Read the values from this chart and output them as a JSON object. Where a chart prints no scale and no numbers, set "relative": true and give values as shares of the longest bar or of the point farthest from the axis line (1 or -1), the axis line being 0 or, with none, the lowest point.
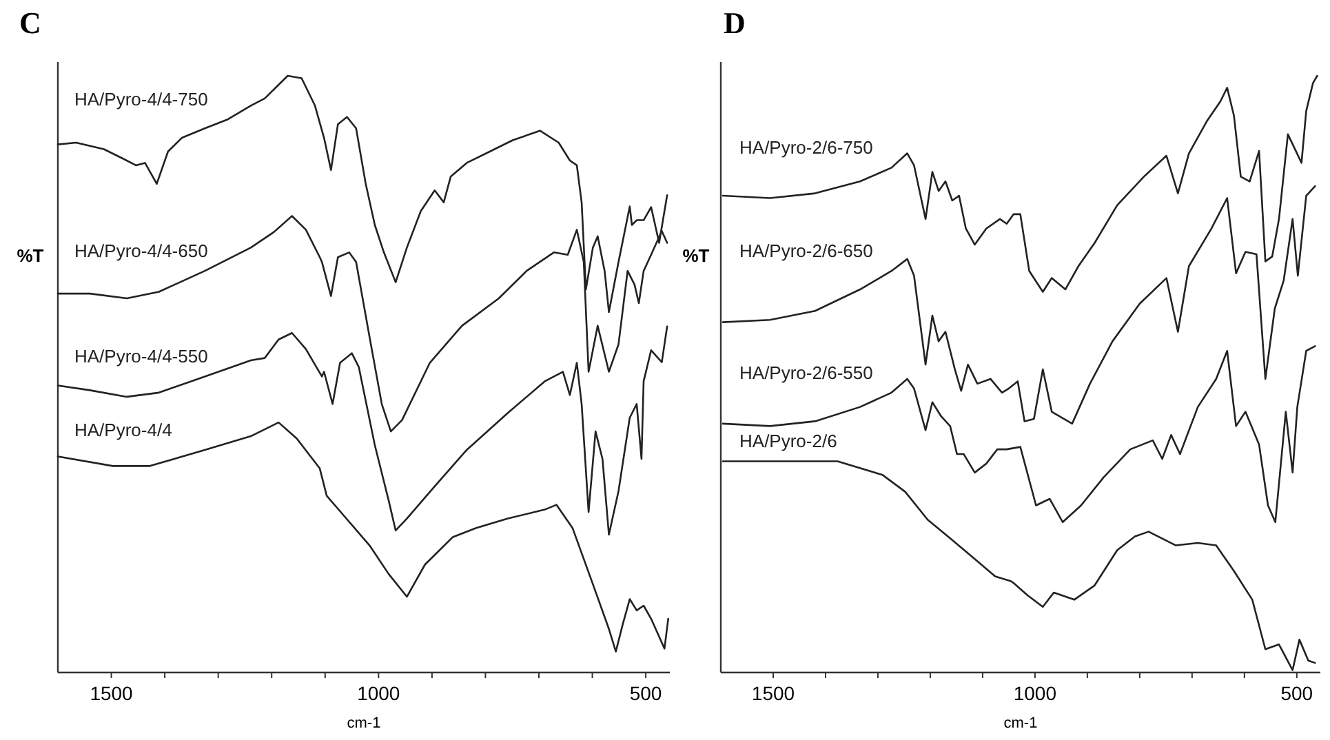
{
  "chart_data": [
    {
      "type": "line",
      "title": "C",
      "xlabel": "cm-1",
      "ylabel": "%T",
      "relative": true,
      "xlim": [
        1600,
        455
      ],
      "xticks": [
        {
          "value": 1500,
          "label": "1500"
        },
        {
          "value": 1400,
          "label": null
        },
        {
          "value": 1300,
          "label": null
        },
        {
          "value": 1200,
          "label": null
        },
        {
          "value": 1100,
          "label": null
        },
        {
          "value": 1000,
          "label": "1000"
        },
        {
          "value": 900,
          "label": null
        },
        {
          "value": 800,
          "label": null
        },
        {
          "value": 700,
          "label": null
        },
        {
          "value": 600,
          "label": null
        },
        {
          "value": 500,
          "label": "500"
        }
      ],
      "series": [
        {
          "name": "HA/Pyro-4/4-750",
          "color": "#222222",
          "x": [
            1600,
            1566,
            1514,
            1480,
            1454,
            1437,
            1415,
            1394,
            1368,
            1325,
            1282,
            1239,
            1213,
            1187,
            1170,
            1144,
            1119,
            1102,
            1089,
            1076,
            1059,
            1042,
            1024,
            1007,
            990,
            968,
            947,
            921,
            895,
            878,
            865,
            835,
            792,
            749,
            698,
            663,
            642,
            629,
            620,
            612,
            599,
            590,
            577,
            569,
            551,
            530,
            526,
            517,
            504,
            490,
            475,
            460
          ],
          "values": [
            0.885,
            0.888,
            0.877,
            0.862,
            0.85,
            0.854,
            0.819,
            0.873,
            0.896,
            0.912,
            0.927,
            0.95,
            0.962,
            0.985,
            1.0,
            0.996,
            0.95,
            0.896,
            0.842,
            0.919,
            0.931,
            0.912,
            0.819,
            0.75,
            0.704,
            0.654,
            0.712,
            0.773,
            0.808,
            0.788,
            0.831,
            0.854,
            0.873,
            0.892,
            0.908,
            0.888,
            0.858,
            0.85,
            0.788,
            0.642,
            0.712,
            0.731,
            0.673,
            0.604,
            0.688,
            0.781,
            0.75,
            0.758,
            0.758,
            0.78,
            0.72,
            0.8
          ]
        },
        {
          "name": "HA/Pyro-4/4-650",
          "color": "#222222",
          "x": [
            1600,
            1540,
            1471,
            1411,
            1325,
            1239,
            1196,
            1162,
            1136,
            1110,
            1106,
            1089,
            1076,
            1055,
            1042,
            1016,
            994,
            977,
            956,
            904,
            844,
            775,
            723,
            672,
            646,
            629,
            616,
            607,
            590,
            569,
            551,
            534,
            521,
            513,
            504,
            490,
            470,
            460
          ],
          "values": [
            0.635,
            0.635,
            0.627,
            0.638,
            0.673,
            0.712,
            0.738,
            0.765,
            0.742,
            0.696,
            0.688,
            0.631,
            0.696,
            0.704,
            0.688,
            0.558,
            0.45,
            0.404,
            0.423,
            0.519,
            0.581,
            0.627,
            0.673,
            0.704,
            0.7,
            0.742,
            0.688,
            0.504,
            0.581,
            0.504,
            0.55,
            0.673,
            0.65,
            0.619,
            0.673,
            0.7,
            0.74,
            0.72
          ]
        },
        {
          "name": "HA/Pyro-4/4-550",
          "color": "#222222",
          "x": [
            1600,
            1540,
            1471,
            1411,
            1325,
            1239,
            1213,
            1187,
            1162,
            1136,
            1106,
            1102,
            1086,
            1072,
            1050,
            1037,
            1007,
            981,
            968,
            947,
            895,
            835,
            758,
            689,
            655,
            642,
            629,
            620,
            607,
            594,
            581,
            569,
            551,
            530,
            517,
            508,
            504,
            490,
            470,
            460
          ],
          "values": [
            0.481,
            0.473,
            0.462,
            0.469,
            0.496,
            0.523,
            0.527,
            0.558,
            0.569,
            0.542,
            0.496,
            0.504,
            0.45,
            0.519,
            0.535,
            0.512,
            0.381,
            0.288,
            0.238,
            0.258,
            0.312,
            0.373,
            0.435,
            0.488,
            0.504,
            0.465,
            0.519,
            0.45,
            0.269,
            0.404,
            0.358,
            0.231,
            0.304,
            0.427,
            0.45,
            0.358,
            0.488,
            0.54,
            0.52,
            0.58
          ]
        },
        {
          "name": "HA/Pyro-4/4",
          "color": "#222222",
          "x": [
            1600,
            1497,
            1428,
            1325,
            1239,
            1187,
            1153,
            1110,
            1097,
            1067,
            1016,
            981,
            947,
            913,
            861,
            818,
            758,
            689,
            667,
            637,
            603,
            569,
            556,
            543,
            530,
            517,
            504,
            490,
            475,
            465,
            458
          ],
          "values": [
            0.362,
            0.346,
            0.346,
            0.373,
            0.396,
            0.419,
            0.392,
            0.342,
            0.296,
            0.265,
            0.212,
            0.165,
            0.127,
            0.181,
            0.227,
            0.242,
            0.258,
            0.273,
            0.281,
            0.242,
            0.158,
            0.073,
            0.035,
            0.081,
            0.123,
            0.104,
            0.112,
            0.09,
            0.06,
            0.04,
            0.09
          ]
        }
      ]
    },
    {
      "type": "line",
      "title": "D",
      "xlabel": "cm-1",
      "ylabel": "%T",
      "relative": true,
      "xlim": [
        1600,
        455
      ],
      "xticks": [
        {
          "value": 1500,
          "label": "1500"
        },
        {
          "value": 1400,
          "label": null
        },
        {
          "value": 1300,
          "label": null
        },
        {
          "value": 1200,
          "label": null
        },
        {
          "value": 1100,
          "label": null
        },
        {
          "value": 1000,
          "label": "1000"
        },
        {
          "value": 900,
          "label": null
        },
        {
          "value": 800,
          "label": null
        },
        {
          "value": 700,
          "label": null
        },
        {
          "value": 600,
          "label": null
        },
        {
          "value": 500,
          "label": "500"
        }
      ],
      "series": [
        {
          "name": "HA/Pyro-2/6-750",
          "color": "#222222",
          "x": [
            1596,
            1506,
            1420,
            1334,
            1274,
            1244,
            1231,
            1209,
            1196,
            1184,
            1171,
            1158,
            1145,
            1132,
            1115,
            1093,
            1067,
            1054,
            1041,
            1028,
            1011,
            985,
            968,
            942,
            917,
            886,
            843,
            792,
            749,
            727,
            706,
            671,
            646,
            633,
            620,
            607,
            590,
            572,
            560,
            547,
            534,
            517,
            504,
            491,
            482,
            469,
            461
          ],
          "values": [
            0.799,
            0.795,
            0.803,
            0.823,
            0.846,
            0.87,
            0.85,
            0.76,
            0.839,
            0.807,
            0.823,
            0.791,
            0.799,
            0.744,
            0.717,
            0.744,
            0.76,
            0.752,
            0.768,
            0.768,
            0.673,
            0.638,
            0.661,
            0.642,
            0.681,
            0.72,
            0.783,
            0.831,
            0.866,
            0.803,
            0.87,
            0.925,
            0.957,
            0.98,
            0.933,
            0.831,
            0.823,
            0.874,
            0.689,
            0.697,
            0.76,
            0.902,
            0.878,
            0.854,
            0.941,
            0.988,
            1.0
          ]
        },
        {
          "name": "HA/Pyro-2/6-650",
          "color": "#222222",
          "x": [
            1596,
            1506,
            1420,
            1334,
            1274,
            1244,
            1231,
            1209,
            1196,
            1184,
            1171,
            1153,
            1141,
            1128,
            1110,
            1085,
            1063,
            1050,
            1033,
            1020,
            1002,
            985,
            968,
            929,
            895,
            852,
            800,
            749,
            727,
            706,
            663,
            633,
            616,
            598,
            577,
            560,
            542,
            525,
            508,
            498,
            482,
            465
          ],
          "values": [
            0.587,
            0.591,
            0.606,
            0.642,
            0.673,
            0.693,
            0.665,
            0.516,
            0.598,
            0.555,
            0.571,
            0.508,
            0.472,
            0.516,
            0.484,
            0.492,
            0.469,
            0.476,
            0.488,
            0.421,
            0.425,
            0.508,
            0.437,
            0.417,
            0.484,
            0.555,
            0.618,
            0.661,
            0.571,
            0.681,
            0.744,
            0.795,
            0.669,
            0.705,
            0.701,
            0.492,
            0.61,
            0.657,
            0.76,
            0.665,
            0.799,
            0.815
          ]
        },
        {
          "name": "HA/Pyro-2/6-550",
          "color": "#222222",
          "x": [
            1596,
            1506,
            1420,
            1334,
            1274,
            1244,
            1231,
            1209,
            1196,
            1179,
            1162,
            1149,
            1136,
            1115,
            1093,
            1072,
            1054,
            1028,
            998,
            972,
            947,
            912,
            869,
            818,
            775,
            757,
            740,
            723,
            689,
            654,
            633,
            616,
            598,
            572,
            555,
            541,
            521,
            508,
            499,
            482,
            465
          ],
          "values": [
            0.417,
            0.413,
            0.421,
            0.445,
            0.469,
            0.492,
            0.476,
            0.406,
            0.453,
            0.429,
            0.413,
            0.366,
            0.366,
            0.335,
            0.35,
            0.374,
            0.374,
            0.378,
            0.28,
            0.291,
            0.252,
            0.28,
            0.327,
            0.374,
            0.389,
            0.358,
            0.398,
            0.366,
            0.445,
            0.492,
            0.539,
            0.413,
            0.437,
            0.382,
            0.28,
            0.252,
            0.437,
            0.335,
            0.445,
            0.539,
            0.547
          ]
        },
        {
          "name": "HA/Pyro-2/6",
          "color": "#222222",
          "x": [
            1596,
            1506,
            1377,
            1291,
            1248,
            1205,
            1162,
            1119,
            1076,
            1046,
            1041,
            1015,
            985,
            964,
            925,
            886,
            843,
            809,
            783,
            731,
            689,
            654,
            620,
            585,
            560,
            534,
            508,
            495,
            478,
            465
          ],
          "values": [
            0.354,
            0.354,
            0.354,
            0.331,
            0.303,
            0.256,
            0.225,
            0.193,
            0.161,
            0.153,
            0.15,
            0.13,
            0.11,
            0.134,
            0.122,
            0.146,
            0.205,
            0.228,
            0.236,
            0.213,
            0.217,
            0.213,
            0.17,
            0.122,
            0.039,
            0.047,
            0.004,
            0.055,
            0.02,
            0.016
          ]
        }
      ]
    }
  ]
}
